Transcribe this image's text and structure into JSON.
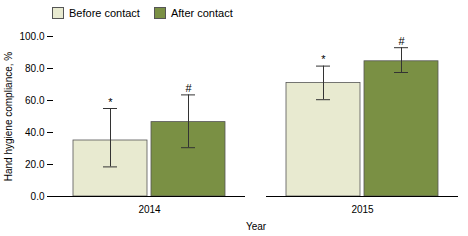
{
  "chart_data": {
    "type": "bar",
    "xlabel": "Year",
    "ylabel": "Hand hygiene compliance, %",
    "categories": [
      "2014",
      "2015"
    ],
    "series": [
      {
        "name": "Before contact",
        "color": "#e8ead0",
        "values": [
          35.0,
          71.0
        ],
        "error_low": [
          16.5,
          10.5
        ],
        "error_high": [
          20.0,
          10.5
        ],
        "annotations": [
          "*",
          "*"
        ]
      },
      {
        "name": "After contact",
        "color": "#7a9044",
        "values": [
          46.5,
          84.5
        ],
        "error_low": [
          16.0,
          7.0
        ],
        "error_high": [
          17.0,
          8.5
        ],
        "annotations": [
          "#",
          "#"
        ]
      }
    ],
    "ylim": [
      0,
      100
    ],
    "yticks": [
      {
        "value": 0,
        "label": "0.0"
      },
      {
        "value": 20,
        "label": "20.0"
      },
      {
        "value": 40,
        "label": "40.0"
      },
      {
        "value": 60,
        "label": "60.0"
      },
      {
        "value": 80,
        "label": "80.0"
      },
      {
        "value": 100,
        "label": "100.0"
      }
    ],
    "grid": false,
    "legend": "upper left"
  }
}
